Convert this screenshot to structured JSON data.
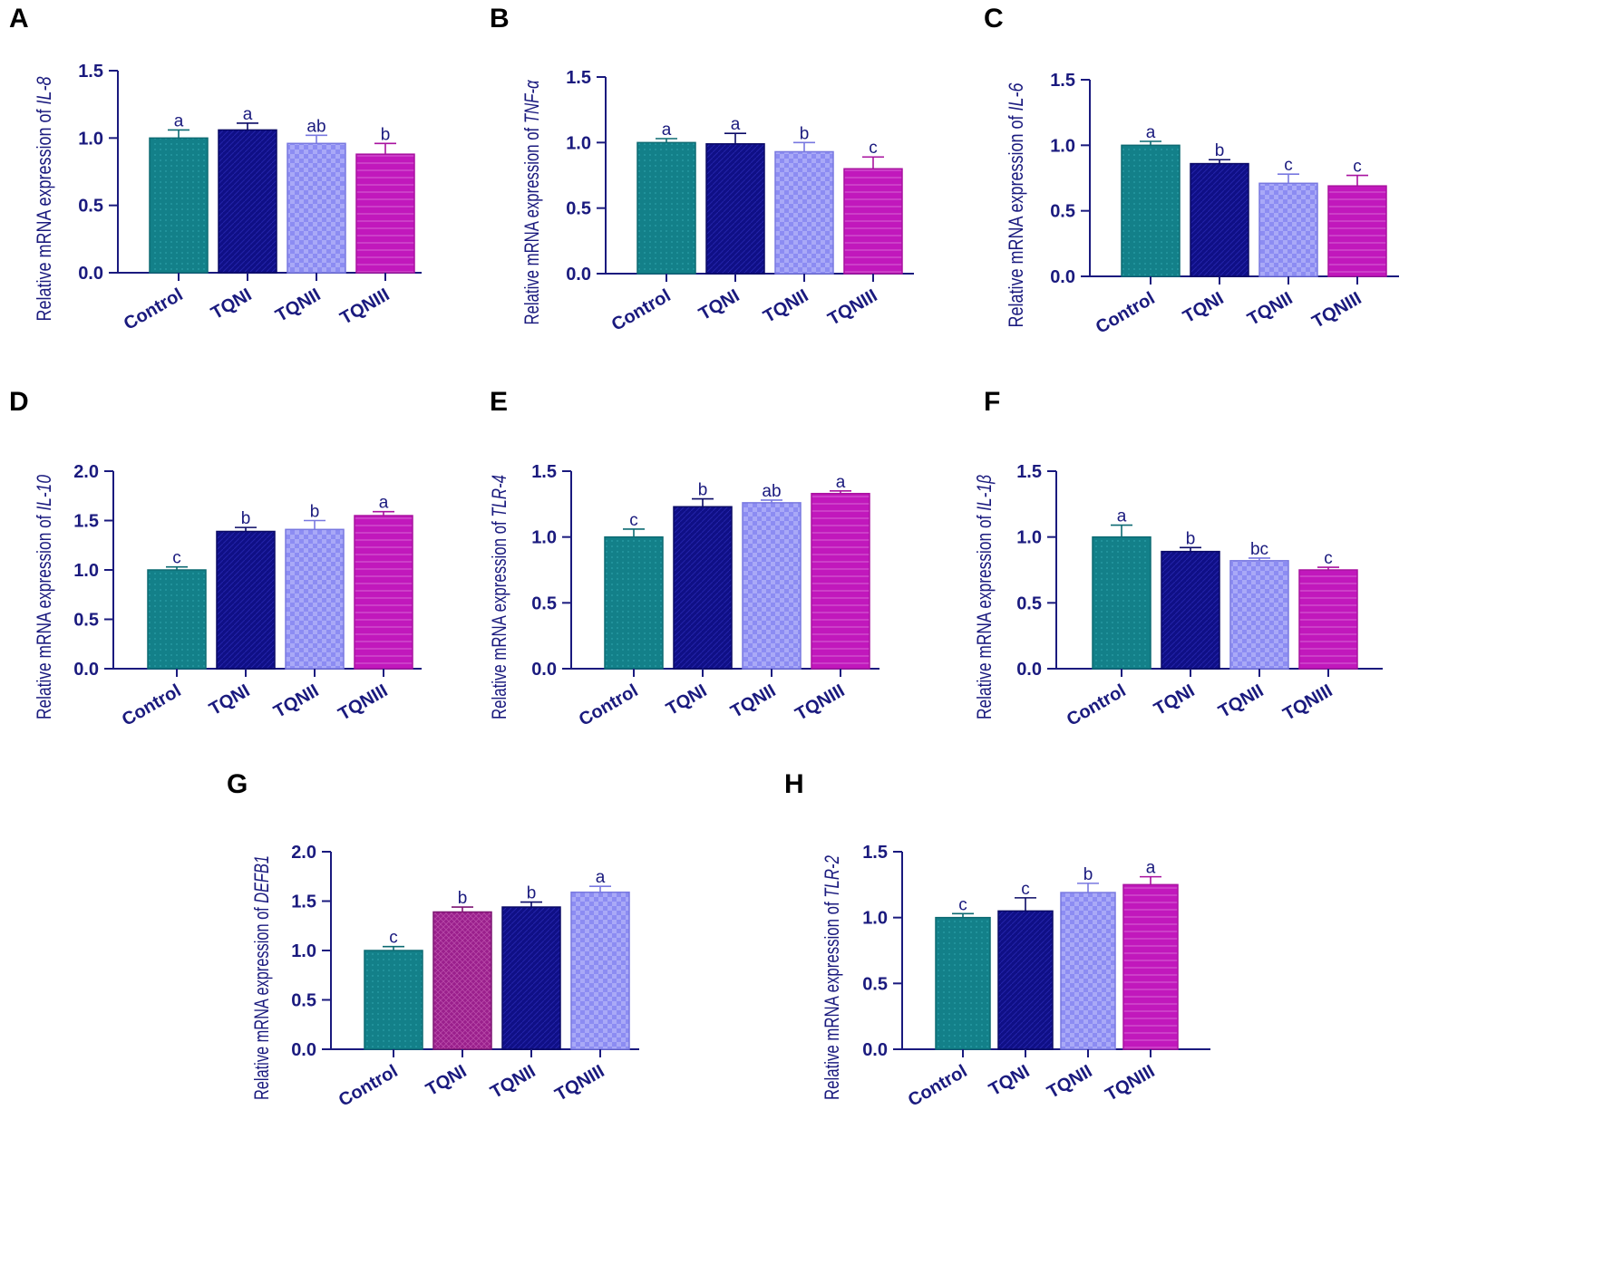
{
  "chart_data": [
    {
      "panel": "A",
      "type": "bar",
      "ylabel_prefix": "Relative mRNA expression of ",
      "ylabel_gene": "IL-8",
      "categories": [
        "Control",
        "TQNI",
        "TQNII",
        "TQNIII"
      ],
      "values": [
        1.0,
        1.06,
        0.96,
        0.88
      ],
      "errors": [
        0.06,
        0.05,
        0.06,
        0.08
      ],
      "letters": [
        "a",
        "a",
        "ab",
        "b"
      ],
      "ylim": [
        0,
        1.5
      ],
      "yticks": [
        "0.0",
        "0.5",
        "1.0",
        "1.5"
      ],
      "fills": [
        "teal",
        "navy",
        "light",
        "magenta"
      ]
    },
    {
      "panel": "B",
      "type": "bar",
      "ylabel_prefix": "Relative mRNA expression of ",
      "ylabel_gene": "TNF-α",
      "categories": [
        "Control",
        "TQNI",
        "TQNII",
        "TQNIII"
      ],
      "values": [
        1.0,
        0.99,
        0.93,
        0.8
      ],
      "errors": [
        0.03,
        0.08,
        0.07,
        0.09
      ],
      "letters": [
        "a",
        "a",
        "b",
        "c"
      ],
      "ylim": [
        0,
        1.5
      ],
      "yticks": [
        "0.0",
        "0.5",
        "1.0",
        "1.5"
      ],
      "fills": [
        "teal",
        "navy",
        "light",
        "magenta"
      ]
    },
    {
      "panel": "C",
      "type": "bar",
      "ylabel_prefix": "Relative mRNA expression of ",
      "ylabel_gene": "IL-6",
      "categories": [
        "Control",
        "TQNI",
        "TQNII",
        "TQNIII"
      ],
      "values": [
        1.0,
        0.86,
        0.71,
        0.69
      ],
      "errors": [
        0.03,
        0.03,
        0.07,
        0.08
      ],
      "letters": [
        "a",
        "b",
        "c",
        "c"
      ],
      "ylim": [
        0,
        1.5
      ],
      "yticks": [
        "0.0",
        "0.5",
        "1.0",
        "1.5"
      ],
      "fills": [
        "teal",
        "navy",
        "light",
        "magenta"
      ]
    },
    {
      "panel": "D",
      "type": "bar",
      "ylabel_prefix": "Relative mRNA expression of ",
      "ylabel_gene": "IL-10",
      "categories": [
        "Control",
        "TQNI",
        "TQNII",
        "TQNIII"
      ],
      "values": [
        1.0,
        1.39,
        1.41,
        1.55
      ],
      "errors": [
        0.03,
        0.04,
        0.09,
        0.04
      ],
      "letters": [
        "c",
        "b",
        "b",
        "a"
      ],
      "ylim": [
        0,
        2.0
      ],
      "yticks": [
        "0.0",
        "0.5",
        "1.0",
        "1.5",
        "2.0"
      ],
      "fills": [
        "teal",
        "navy",
        "light",
        "magenta"
      ]
    },
    {
      "panel": "E",
      "type": "bar",
      "ylabel_prefix": "Relative mRNA expression of ",
      "ylabel_gene": "TLR-4",
      "categories": [
        "Control",
        "TQNI",
        "TQNII",
        "TQNIII"
      ],
      "values": [
        1.0,
        1.23,
        1.26,
        1.33
      ],
      "errors": [
        0.06,
        0.06,
        0.02,
        0.02
      ],
      "letters": [
        "c",
        "b",
        "ab",
        "a"
      ],
      "ylim": [
        0,
        1.5
      ],
      "yticks": [
        "0.0",
        "0.5",
        "1.0",
        "1.5"
      ],
      "fills": [
        "teal",
        "navy",
        "light",
        "magenta"
      ]
    },
    {
      "panel": "F",
      "type": "bar",
      "ylabel_prefix": "Relative mRNA expression of ",
      "ylabel_gene": "IL-1β",
      "categories": [
        "Control",
        "TQNI",
        "TQNII",
        "TQNIII"
      ],
      "values": [
        1.0,
        0.89,
        0.82,
        0.75
      ],
      "errors": [
        0.09,
        0.03,
        0.02,
        0.02
      ],
      "letters": [
        "a",
        "b",
        "bc",
        "c"
      ],
      "ylim": [
        0,
        1.5
      ],
      "yticks": [
        "0.0",
        "0.5",
        "1.0",
        "1.5"
      ],
      "fills": [
        "teal",
        "navy",
        "light",
        "magenta"
      ]
    },
    {
      "panel": "G",
      "type": "bar",
      "ylabel_prefix": "Relative mRNA expression of ",
      "ylabel_gene": "DEFB1",
      "categories": [
        "Control",
        "TQNI",
        "TQNII",
        "TQNIII"
      ],
      "values": [
        1.0,
        1.39,
        1.44,
        1.59
      ],
      "errors": [
        0.04,
        0.05,
        0.05,
        0.06
      ],
      "letters": [
        "c",
        "b",
        "b",
        "a"
      ],
      "ylim": [
        0,
        2.0
      ],
      "yticks": [
        "0.0",
        "0.5",
        "1.0",
        "1.5",
        "2.0"
      ],
      "fills": [
        "teal",
        "purple",
        "navy",
        "light"
      ]
    },
    {
      "panel": "H",
      "type": "bar",
      "ylabel_prefix": "Relative mRNA expression of ",
      "ylabel_gene": "TLR-2",
      "categories": [
        "Control",
        "TQNI",
        "TQNII",
        "TQNIII"
      ],
      "values": [
        1.0,
        1.05,
        1.19,
        1.25
      ],
      "errors": [
        0.03,
        0.1,
        0.07,
        0.06
      ],
      "letters": [
        "c",
        "c",
        "b",
        "a"
      ],
      "ylim": [
        0,
        1.5
      ],
      "yticks": [
        "0.0",
        "0.5",
        "1.0",
        "1.5"
      ],
      "fills": [
        "teal",
        "navy",
        "light",
        "magenta"
      ]
    }
  ],
  "colors": {
    "axis": "#1a1a7e",
    "teal": "#138089",
    "navy": "#0f0f86",
    "light": "#8c8cf2",
    "magenta": "#c118bc",
    "purple": "#9a1f8c"
  }
}
